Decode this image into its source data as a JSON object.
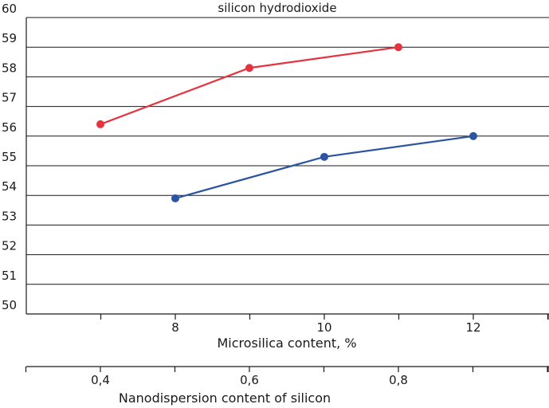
{
  "chart_data": {
    "type": "line",
    "title": "silicon hydrodioxide",
    "ylim": [
      50,
      60
    ],
    "yticks": [
      "50",
      "51",
      "52",
      "53",
      "54",
      "55",
      "56",
      "57",
      "58",
      "59",
      "60"
    ],
    "grid": "horizontal",
    "axes": {
      "microsilica": {
        "label": "Microsilica content, %",
        "ticks": [
          8,
          10,
          12
        ],
        "tick_labels": [
          "8",
          "10",
          "12"
        ]
      },
      "nano": {
        "label": "Nanodispersion content of silicon",
        "ticks": [
          0.4,
          0.6,
          0.8
        ],
        "tick_labels": [
          "0,4",
          "0,6",
          "0,8"
        ]
      }
    },
    "series": [
      {
        "x_axis": "nano",
        "color": "#e63340",
        "points": [
          [
            0.4,
            56.4
          ],
          [
            0.6,
            58.3
          ],
          [
            0.8,
            59.0
          ]
        ]
      },
      {
        "x_axis": "microsilica",
        "color": "#2b55a3",
        "points": [
          [
            8,
            53.9
          ],
          [
            10,
            55.3
          ],
          [
            12,
            56.0
          ]
        ]
      }
    ]
  }
}
